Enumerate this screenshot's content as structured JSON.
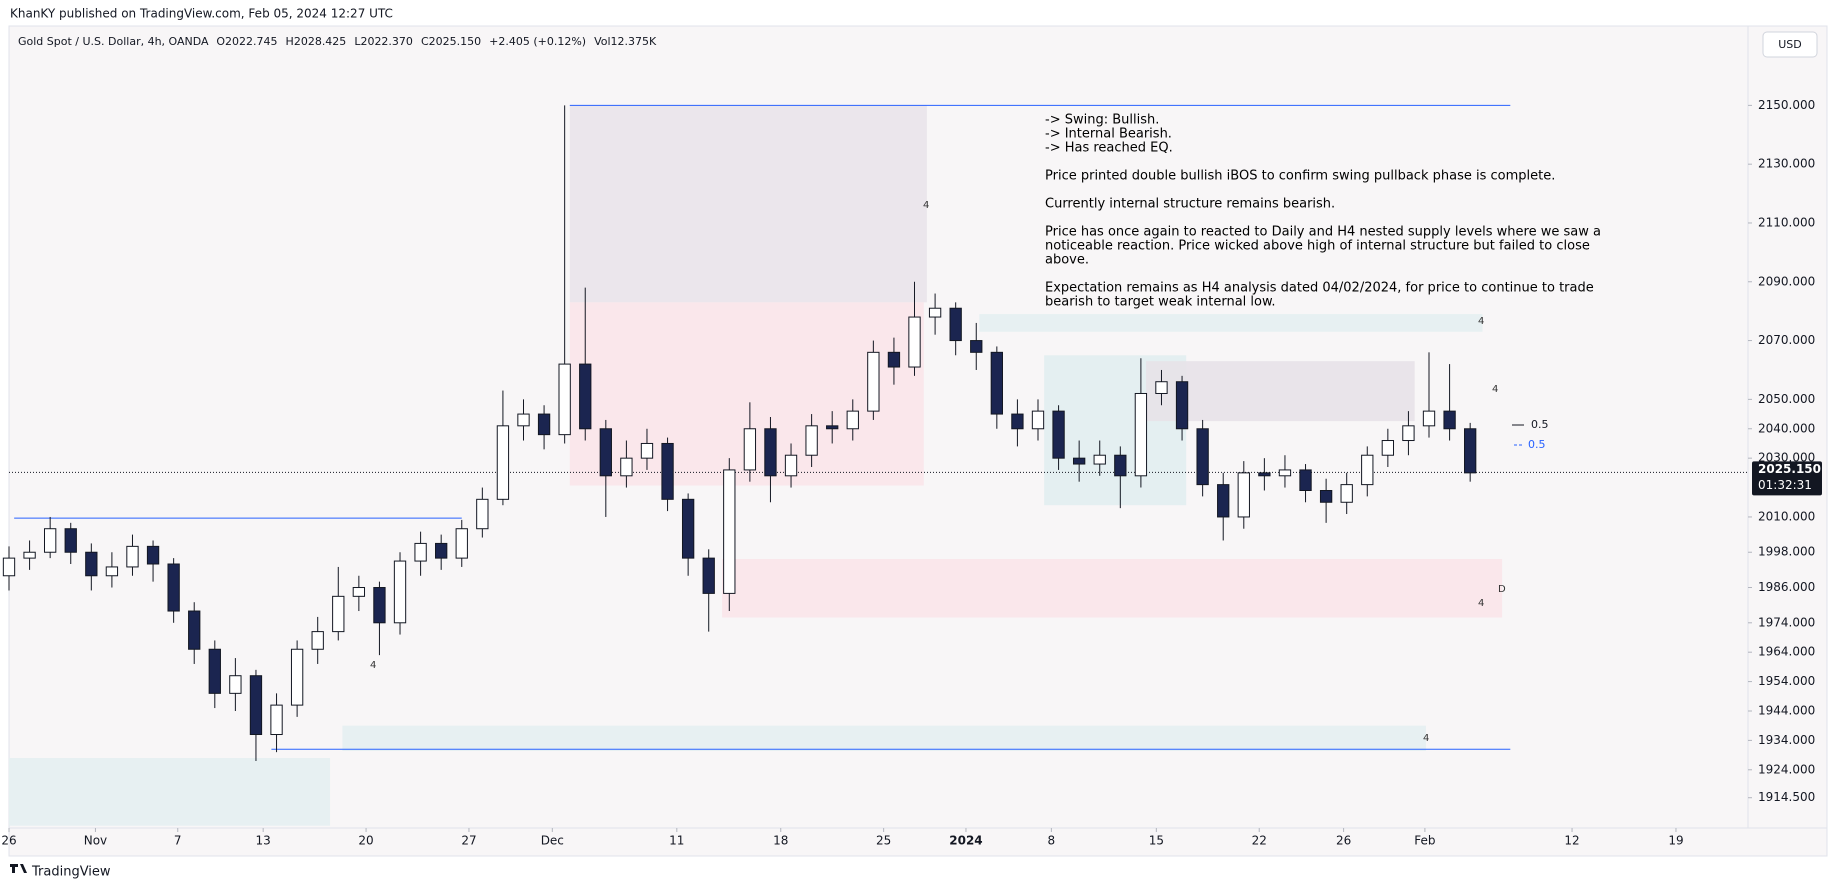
{
  "header": {
    "published": "KhanKY published on TradingView.com, Feb 05, 2024 12:27 UTC",
    "footer": "TradingView",
    "currency": "USD"
  },
  "chart_data": {
    "type": "candlestick",
    "title": "Gold Spot / U.S. Dollar, 4h, OANDA",
    "ohlc_legend": [
      "O2022.745",
      "H2028.425",
      "L2022.370",
      "C2025.150",
      "+2.405 (+0.12%)",
      "Vol12.375K"
    ],
    "x": [
      0,
      2,
      4,
      6,
      8,
      10,
      12,
      14,
      16,
      18,
      20,
      22,
      24,
      26,
      28,
      30,
      32,
      34,
      36,
      38,
      40,
      42,
      44,
      46,
      48,
      50,
      52,
      54,
      56,
      58,
      60,
      62,
      64,
      66,
      68,
      70,
      72,
      74,
      76,
      78,
      80,
      82,
      84,
      86,
      88,
      90,
      92,
      94,
      96,
      98,
      100,
      102,
      104,
      106,
      108,
      110,
      112,
      114,
      116,
      118,
      120,
      122,
      124,
      126,
      128,
      130,
      132,
      134,
      136,
      138,
      140,
      142
    ],
    "open": [
      1990,
      1996,
      1998,
      2006,
      1998,
      1990,
      1993,
      2000,
      1994,
      1978,
      1965,
      1950,
      1956,
      1936,
      1946,
      1965,
      1971,
      1983,
      1986,
      1974,
      1995,
      2001,
      1996,
      2006,
      2016,
      2041,
      2045,
      2038,
      2062,
      2040,
      2024,
      2030,
      2035,
      2016,
      1996,
      1984,
      2026,
      2040,
      2024,
      2031,
      2041,
      2040,
      2046,
      2066,
      2061,
      2078,
      2081,
      2070,
      2066,
      2045,
      2040,
      2046,
      2030,
      2028,
      2031,
      2024,
      2052,
      2056,
      2040,
      2021,
      2010,
      2025,
      2024,
      2026,
      2019,
      2015,
      2021,
      2031,
      2036,
      2041,
      2046,
      2040
    ],
    "high": [
      2000,
      2002,
      2010,
      2008,
      2001,
      1998,
      2004,
      2002,
      1996,
      1981,
      1968,
      1962,
      1958,
      1950,
      1968,
      1976,
      1993,
      1990,
      1988,
      1998,
      2005,
      2004,
      2009,
      2020,
      2053,
      2050,
      2048,
      2150,
      2088,
      2043,
      2036,
      2040,
      2037,
      2018,
      1999,
      2030,
      2049,
      2044,
      2035,
      2045,
      2046,
      2050,
      2070,
      2071,
      2090,
      2086,
      2083,
      2076,
      2068,
      2050,
      2050,
      2048,
      2036,
      2036,
      2034,
      2064,
      2060,
      2058,
      2043,
      2025,
      2029,
      2030,
      2031,
      2028,
      2023,
      2025,
      2034,
      2040,
      2046,
      2066,
      2062,
      2042
    ],
    "low": [
      1985,
      1992,
      1996,
      1994,
      1985,
      1986,
      1990,
      1988,
      1974,
      1960,
      1945,
      1944,
      1927,
      1930,
      1942,
      1960,
      1968,
      1978,
      1963,
      1970,
      1990,
      1992,
      1993,
      2003,
      2014,
      2036,
      2033,
      2035,
      2036,
      2010,
      2020,
      2026,
      2012,
      1990,
      1971,
      1978,
      2022,
      2015,
      2020,
      2027,
      2035,
      2036,
      2043,
      2055,
      2058,
      2072,
      2065,
      2060,
      2040,
      2034,
      2036,
      2026,
      2022,
      2024,
      2013,
      2020,
      2048,
      2036,
      2017,
      2002,
      2006,
      2019,
      2020,
      2015,
      2008,
      2011,
      2017,
      2027,
      2031,
      2037,
      2036,
      2022
    ],
    "close": [
      1996,
      1998,
      2006,
      1998,
      1990,
      1993,
      2000,
      1994,
      1978,
      1965,
      1950,
      1956,
      1936,
      1946,
      1965,
      1971,
      1983,
      1986,
      1974,
      1995,
      2001,
      1996,
      2006,
      2016,
      2041,
      2045,
      2038,
      2062,
      2040,
      2024,
      2030,
      2035,
      2016,
      1996,
      1984,
      2026,
      2040,
      2024,
      2031,
      2041,
      2040,
      2046,
      2066,
      2061,
      2078,
      2081,
      2070,
      2066,
      2045,
      2040,
      2046,
      2030,
      2028,
      2031,
      2024,
      2052,
      2056,
      2040,
      2021,
      2010,
      2025,
      2024,
      2026,
      2019,
      2015,
      2021,
      2031,
      2036,
      2041,
      2046,
      2040,
      2025
    ],
    "up_color": "#ffffff",
    "down_color": "#1b2550",
    "wick_color": "#131722",
    "xlim": [
      0,
      169
    ],
    "ylim": [
      1904.2,
      2177
    ],
    "xticks": [
      {
        "value": 0,
        "label": "26"
      },
      {
        "value": 8.4,
        "label": "Nov"
      },
      {
        "value": 16.4,
        "label": "7"
      },
      {
        "value": 24.7,
        "label": "13"
      },
      {
        "value": 34.7,
        "label": "20"
      },
      {
        "value": 44.7,
        "label": "27"
      },
      {
        "value": 52.8,
        "label": "Dec"
      },
      {
        "value": 64.9,
        "label": "11"
      },
      {
        "value": 75,
        "label": "18"
      },
      {
        "value": 85,
        "label": "25"
      },
      {
        "value": 93,
        "label": "2024"
      },
      {
        "value": 101.3,
        "label": "8"
      },
      {
        "value": 111.5,
        "label": "15"
      },
      {
        "value": 121.5,
        "label": "22"
      },
      {
        "value": 129.7,
        "label": "26"
      },
      {
        "value": 137.6,
        "label": "Feb"
      },
      {
        "value": 151.9,
        "label": "12"
      },
      {
        "value": 162,
        "label": "19"
      }
    ],
    "yticks": [
      {
        "value": 2150,
        "label": "2150.000"
      },
      {
        "value": 2130,
        "label": "2130.000"
      },
      {
        "value": 2110,
        "label": "2110.000"
      },
      {
        "value": 2090,
        "label": "2090.000"
      },
      {
        "value": 2070,
        "label": "2070.000"
      },
      {
        "value": 2050,
        "label": "2050.000"
      },
      {
        "value": 2040,
        "label": "2040.000"
      },
      {
        "value": 2030,
        "label": "2030.000"
      },
      {
        "value": 2010,
        "label": "2010.000"
      },
      {
        "value": 1998,
        "label": "1998.000"
      },
      {
        "value": 1986,
        "label": "1986.000"
      },
      {
        "value": 1974,
        "label": "1974.000"
      },
      {
        "value": 1964,
        "label": "1964.000"
      },
      {
        "value": 1954,
        "label": "1954.000"
      },
      {
        "value": 1944,
        "label": "1944.000"
      },
      {
        "value": 1934,
        "label": "1934.000"
      },
      {
        "value": 1924,
        "label": "1924.000"
      },
      {
        "value": 1914.5,
        "label": "1914.500"
      }
    ],
    "last_price": {
      "value": 2025.15,
      "label": "2025.150"
    },
    "countdown": "01:32:31",
    "zones": [
      {
        "x": [
          54.5,
          89.2
        ],
        "y": [
          2083,
          2150
        ],
        "color": "#e9e4ea"
      },
      {
        "x": [
          54.5,
          88.9
        ],
        "y": [
          2020.7,
          2083
        ],
        "color": "#f9e6e9"
      },
      {
        "x": [
          69.3,
          145.1
        ],
        "y": [
          1975.8,
          1995.7
        ],
        "color": "#f9e6e9"
      },
      {
        "x": [
          32.4,
          137.7
        ],
        "y": [
          1930.4,
          1939
        ],
        "color": "#e4eff1"
      },
      {
        "x": [
          0,
          31.2
        ],
        "y": [
          1905,
          1928
        ],
        "color": "#e4eff1"
      },
      {
        "x": [
          100.6,
          114.4
        ],
        "y": [
          2014,
          2065
        ],
        "color": "#e1eef0"
      },
      {
        "x": [
          94.3,
          143.2
        ],
        "y": [
          2073,
          2079
        ],
        "color": "#e4eff1"
      },
      {
        "x": [
          110.5,
          136.6
        ],
        "y": [
          2042.6,
          2063
        ],
        "color": "#e7e2e8"
      }
    ],
    "levels": [
      {
        "value": 2150,
        "x": [
          54.5,
          145.9
        ],
        "color": "#2962ff"
      },
      {
        "value": 2009.6,
        "x": [
          0.5,
          44
        ],
        "color": "#2962ff"
      },
      {
        "value": 1931,
        "x": [
          25.5,
          145.9
        ],
        "color": "#2962ff"
      }
    ],
    "zone_labels": [
      "4",
      "4",
      "4",
      "4",
      "4",
      "4",
      "D"
    ],
    "fib_labels": [
      "0.5",
      "0.5"
    ],
    "notes": [
      "-> Swing: Bullish.",
      "-> Internal Bearish.",
      "-> Has reached EQ.",
      "Price printed double bullish iBOS to confirm swing pullback phase is complete.",
      "Currently internal structure remains bearish.",
      "Price has once again to reacted to Daily and H4 nested supply levels where we saw a",
      "noticeable reaction.  Price wicked above high of internal structure but failed to close",
      "above.",
      "Expectation remains as H4 analysis dated 04/02/2024, for price to continue to trade",
      "bearish to target weak internal low."
    ]
  }
}
